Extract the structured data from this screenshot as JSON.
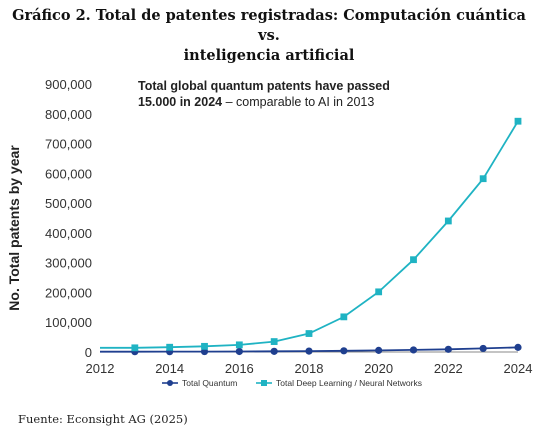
{
  "page": {
    "title_line1": "Gráfico 2. Total de patentes registradas: Computación cuántica vs.",
    "title_line2": "inteligencia artificial",
    "source": "Fuente: Econsight AG (2025)"
  },
  "chart_data": {
    "type": "line",
    "ylabel": "No. Total patents by year",
    "xlabel": "",
    "annotation": {
      "line1": "Total global quantum patents have passed",
      "line2_bold": "15.000 in 2024",
      "line2_rest": " – comparable to AI in 2013"
    },
    "xlim": [
      2012,
      2024
    ],
    "ylim": [
      0,
      900000
    ],
    "x_ticks": [
      "2012",
      "2014",
      "2016",
      "2018",
      "2020",
      "2022",
      "2024"
    ],
    "y_ticks": [
      "0",
      "100,000",
      "200,000",
      "300,000",
      "400,000",
      "500,000",
      "600,000",
      "700,000",
      "800,000",
      "900,000"
    ],
    "x": [
      2013,
      2014,
      2015,
      2016,
      2017,
      2018,
      2019,
      2020,
      2021,
      2022,
      2023,
      2024
    ],
    "series": [
      {
        "name": "Total Quantum",
        "color": "#1f3f8f",
        "marker": "circle",
        "values": [
          1000,
          1200,
          1500,
          1800,
          2200,
          3000,
          4000,
          5500,
          7000,
          9000,
          12000,
          15500
        ]
      },
      {
        "name": "Total Deep Learning / Neural Networks",
        "color": "#1fb3c3",
        "marker": "square",
        "values": [
          14000,
          16000,
          19000,
          24000,
          35000,
          62000,
          118000,
          202000,
          310000,
          440000,
          582000,
          775000
        ]
      }
    ],
    "legend_position": "bottom",
    "grid": false
  }
}
